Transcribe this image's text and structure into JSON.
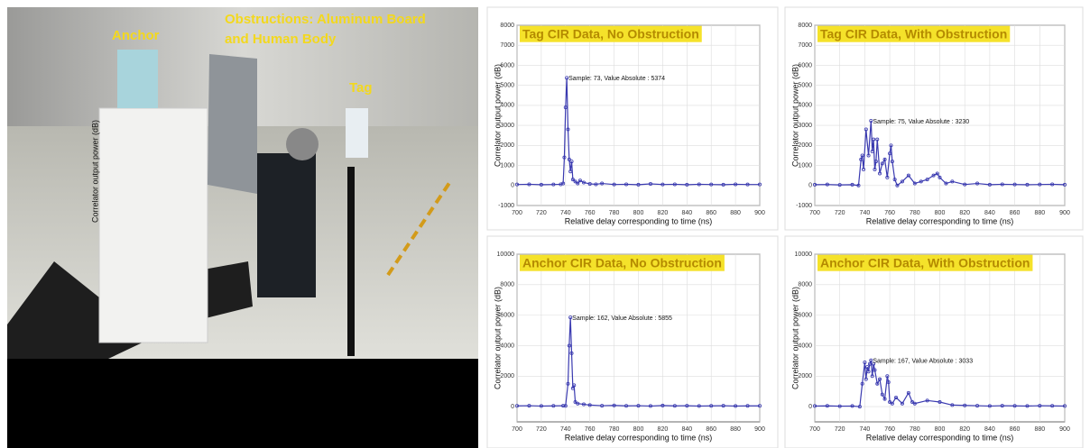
{
  "photo": {
    "anchor_label": "Anchor",
    "obstruction_label": [
      "Obstructions: Aluminum Board",
      "and Human Body"
    ],
    "tag_label": "Tag",
    "axis_label": "Correlator output power (dB)"
  },
  "chart_data": [
    {
      "type": "line",
      "title": "Tag CIR Data, No Obstruction",
      "xlabel": "Relative delay corresponding to time   (ns)",
      "ylabel": "Correlator output power (dB)",
      "annotation": "Sample: 73, Value Absolute : 5374",
      "x": [
        700,
        710,
        720,
        730,
        736,
        738,
        739,
        740,
        741,
        742,
        743,
        744,
        745,
        746,
        748,
        750,
        752,
        755,
        760,
        765,
        770,
        780,
        790,
        800,
        810,
        820,
        830,
        840,
        850,
        860,
        870,
        880,
        890,
        900
      ],
      "values": [
        50,
        60,
        40,
        50,
        60,
        100,
        1400,
        3900,
        5374,
        2800,
        1300,
        700,
        1200,
        300,
        200,
        100,
        250,
        150,
        80,
        60,
        100,
        50,
        60,
        40,
        80,
        50,
        60,
        40,
        60,
        50,
        40,
        60,
        50,
        50
      ],
      "color": "#3a3ab0",
      "xlim": [
        700,
        900
      ],
      "ylim": [
        -1000,
        8000
      ],
      "xticks": [
        700,
        720,
        740,
        760,
        780,
        800,
        820,
        840,
        860,
        880,
        900
      ],
      "yticks": [
        -1000,
        0,
        1000,
        2000,
        3000,
        4000,
        5000,
        6000,
        7000,
        8000
      ],
      "grid": true
    },
    {
      "type": "line",
      "title": "Tag CIR Data, With Obstruction",
      "xlabel": "Relative delay corresponding to time   (ns)",
      "ylabel": "Correlator output power (dB)",
      "annotation": "Sample: 75, Value Absolute : 3230",
      "x": [
        700,
        710,
        720,
        730,
        735,
        737,
        738,
        739,
        741,
        743,
        745,
        746,
        747,
        748,
        749,
        750,
        752,
        754,
        756,
        758,
        760,
        761,
        762,
        764,
        766,
        770,
        775,
        780,
        785,
        790,
        795,
        798,
        800,
        805,
        810,
        820,
        830,
        840,
        850,
        860,
        870,
        880,
        890,
        900
      ],
      "values": [
        40,
        50,
        30,
        40,
        0,
        1300,
        1500,
        800,
        2800,
        1500,
        3230,
        1700,
        2300,
        800,
        1200,
        2300,
        600,
        1100,
        1300,
        400,
        1600,
        2000,
        1200,
        300,
        0,
        200,
        500,
        100,
        200,
        300,
        500,
        600,
        400,
        100,
        200,
        50,
        100,
        40,
        60,
        50,
        40,
        50,
        60,
        40
      ],
      "color": "#3a3ab0",
      "xlim": [
        700,
        900
      ],
      "ylim": [
        -1000,
        8000
      ],
      "xticks": [
        700,
        720,
        740,
        760,
        780,
        800,
        820,
        840,
        860,
        880,
        900
      ],
      "yticks": [
        -1000,
        0,
        1000,
        2000,
        3000,
        4000,
        5000,
        6000,
        7000,
        8000
      ],
      "grid": true
    },
    {
      "type": "line",
      "title": "Anchor CIR Data, No Obstruction",
      "xlabel": "Relative delay corresponding to time   (ns)",
      "ylabel": "Correlator output power (dB)",
      "annotation": "Sample: 162, Value Absolute : 5855",
      "x": [
        700,
        710,
        720,
        730,
        738,
        740,
        742,
        743,
        744,
        745,
        746,
        747,
        748,
        750,
        755,
        760,
        770,
        780,
        790,
        800,
        810,
        820,
        830,
        840,
        850,
        860,
        870,
        880,
        890,
        900
      ],
      "values": [
        50,
        60,
        40,
        50,
        60,
        50,
        1500,
        4000,
        5855,
        3500,
        1200,
        1400,
        300,
        200,
        150,
        100,
        60,
        80,
        50,
        60,
        40,
        70,
        50,
        60,
        40,
        50,
        60,
        40,
        50,
        50
      ],
      "color": "#3a3ab0",
      "xlim": [
        700,
        900
      ],
      "ylim": [
        -1000,
        10000
      ],
      "xticks": [
        700,
        720,
        740,
        760,
        780,
        800,
        820,
        840,
        860,
        880,
        900
      ],
      "yticks": [
        0,
        2000,
        4000,
        6000,
        8000,
        10000
      ],
      "grid": true
    },
    {
      "type": "line",
      "title": "Anchor CIR Data, With Obstruction",
      "xlabel": "Relative delay corresponding to time   (ns)",
      "ylabel": "Correlator output power (dB)",
      "annotation": "Sample: 167, Value Absolute : 3033",
      "x": [
        700,
        710,
        720,
        730,
        736,
        738,
        740,
        741,
        742,
        743,
        744,
        745,
        746,
        747,
        748,
        750,
        752,
        754,
        756,
        758,
        759,
        760,
        762,
        765,
        770,
        775,
        778,
        780,
        790,
        800,
        810,
        820,
        830,
        840,
        850,
        860,
        870,
        880,
        890,
        900
      ],
      "values": [
        40,
        50,
        30,
        40,
        0,
        1500,
        2900,
        1800,
        2600,
        2300,
        2800,
        3033,
        2000,
        2800,
        2400,
        1500,
        1800,
        800,
        500,
        2000,
        1600,
        300,
        200,
        600,
        200,
        900,
        300,
        200,
        400,
        300,
        100,
        80,
        60,
        40,
        60,
        50,
        40,
        60,
        50,
        40
      ],
      "color": "#3a3ab0",
      "xlim": [
        700,
        900
      ],
      "ylim": [
        -1000,
        10000
      ],
      "xticks": [
        700,
        720,
        740,
        760,
        780,
        800,
        820,
        840,
        860,
        880,
        900
      ],
      "yticks": [
        0,
        2000,
        4000,
        6000,
        8000,
        10000
      ],
      "grid": true
    }
  ]
}
